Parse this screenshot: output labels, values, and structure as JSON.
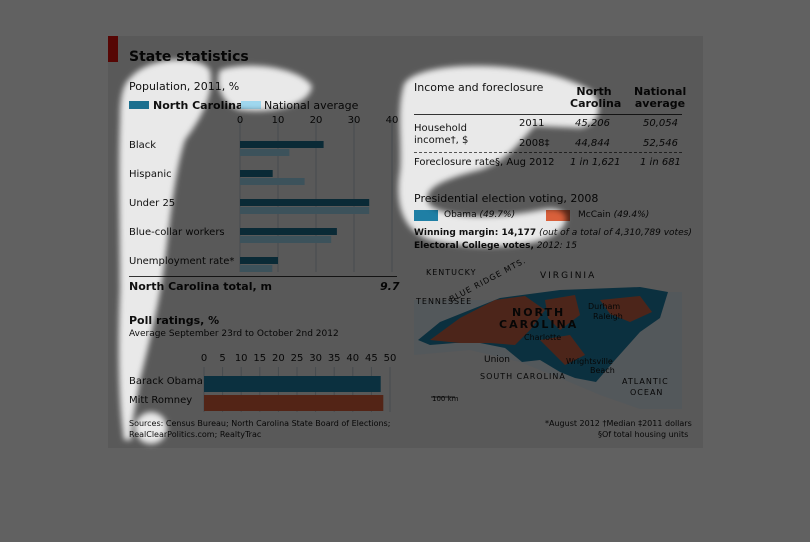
{
  "figure": {
    "title": "State statistics",
    "colors": {
      "nc": "#1b6f8f",
      "national": "#9fd7ee",
      "obama": "#1f7fa5",
      "mccain": "#d9603b",
      "accent": "#e3120b"
    },
    "sources": [
      "Sources: Census Bureau; North Carolina State Board of Elections;",
      "RealClearPolitics.com; RealtyTrac"
    ],
    "footnotes": [
      "*August 2012  †Median  ‡2011 dollars",
      "§Of total housing units"
    ]
  },
  "chart_data": [
    {
      "type": "bar",
      "title": "Population, 2011, %",
      "legend": [
        "North Carolina",
        "National average"
      ],
      "categories": [
        "Black",
        "Hispanic",
        "Under 25",
        "Blue-collar workers",
        "Unemployment rate*"
      ],
      "series": [
        {
          "name": "North Carolina",
          "values": [
            22,
            8.6,
            34,
            25.5,
            10
          ]
        },
        {
          "name": "National average",
          "values": [
            13,
            17,
            34,
            24,
            8.5
          ]
        }
      ],
      "xlim": [
        0,
        40
      ],
      "xticks": [
        "0",
        "10",
        "20",
        "30",
        "40"
      ],
      "total_label": "North Carolina total, m",
      "total_value": "9.7"
    },
    {
      "type": "bar",
      "title": "Poll ratings, %",
      "subtitle": "Average September 23rd to October 2nd 2012",
      "categories": [
        "Barack Obama",
        "Mitt Romney"
      ],
      "values": [
        47.5,
        48.2
      ],
      "xlim": [
        0,
        50
      ],
      "xticks": [
        "0",
        "5",
        "10",
        "15",
        "20",
        "25",
        "30",
        "35",
        "40",
        "45",
        "50"
      ]
    },
    {
      "type": "table",
      "title": "Income and foreclosure",
      "columns": [
        "North Carolina",
        "National average"
      ],
      "rows": [
        {
          "label": "Household income†, $",
          "period": "2011",
          "nc": "45,206",
          "national": "50,054"
        },
        {
          "label": "",
          "period": "2008‡",
          "nc": "44,844",
          "national": "52,546"
        },
        {
          "label": "Foreclosure rate§, Aug 2012",
          "period": "",
          "nc": "1 in 1,621",
          "national": "1 in 681"
        }
      ]
    }
  ],
  "election": {
    "title": "Presidential election voting, 2008",
    "obama": "Obama",
    "obama_pct": "(49.7%)",
    "mccain": "McCain",
    "mccain_pct": "(49.4%)",
    "margin_label": "Winning margin: 14,177",
    "margin_note": "(out of a total of 4,310,789 votes)",
    "ec_label": "Electoral College votes,",
    "ec_value": "2012: 15"
  },
  "map": {
    "states": [
      "KENTUCKY",
      "VIRGINIA",
      "TENNESSEE",
      "NORTH",
      "CAROLINA",
      "SOUTH CAROLINA",
      "ATLANTIC",
      "OCEAN"
    ],
    "mountains": "BLUE RIDGE MTS.",
    "cities": [
      "Durham",
      "Raleigh",
      "Charlotte",
      "Union",
      "Wrightsville",
      "Beach"
    ],
    "scale": "100 km"
  }
}
